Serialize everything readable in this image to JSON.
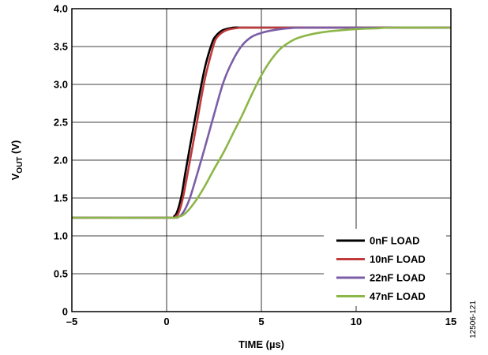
{
  "figure_id": "12506-121",
  "chart_data": {
    "type": "line",
    "xlabel": "TIME (µs)",
    "ylabel": {
      "main": "V",
      "sub": "OUT",
      "rest": " (V)"
    },
    "xlim": [
      -5,
      15
    ],
    "ylim": [
      0,
      4.0
    ],
    "xticks": [
      -5,
      0,
      5,
      10,
      15
    ],
    "xtick_labels": [
      "–5",
      "0",
      "5",
      "10",
      "15"
    ],
    "yticks": [
      0,
      0.5,
      1.0,
      1.5,
      2.0,
      2.5,
      3.0,
      3.5,
      4.0
    ],
    "ytick_labels": [
      "0",
      "0.5",
      "1.0",
      "1.5",
      "2.0",
      "2.5",
      "3.0",
      "3.5",
      "4.0"
    ],
    "grid": true,
    "legend_position": "bottom-right",
    "series": [
      {
        "name": "0nF LOAD",
        "color": "#000000",
        "x": [
          -5,
          0,
          0.4,
          0.6,
          0.8,
          1.0,
          1.5,
          2.0,
          2.4,
          2.6,
          2.8,
          3.0,
          3.5,
          4.0,
          5.0,
          15
        ],
        "y": [
          1.24,
          1.24,
          1.26,
          1.35,
          1.55,
          1.85,
          2.55,
          3.2,
          3.55,
          3.64,
          3.69,
          3.72,
          3.75,
          3.75,
          3.75,
          3.75
        ]
      },
      {
        "name": "10nF LOAD",
        "color": "#c0393b",
        "x": [
          -5,
          0,
          0.5,
          0.7,
          0.9,
          1.2,
          1.6,
          2.0,
          2.4,
          2.6,
          2.9,
          3.2,
          3.6,
          4.0,
          5.0,
          15
        ],
        "y": [
          1.24,
          1.24,
          1.26,
          1.35,
          1.55,
          1.95,
          2.5,
          3.05,
          3.45,
          3.6,
          3.68,
          3.72,
          3.74,
          3.75,
          3.75,
          3.75
        ]
      },
      {
        "name": "22nF LOAD",
        "color": "#7b5ea7",
        "x": [
          -5,
          0,
          0.6,
          0.9,
          1.2,
          1.5,
          2.0,
          2.5,
          3.0,
          3.5,
          4.0,
          4.5,
          5.0,
          5.5,
          6.0,
          7.0,
          8.0,
          15
        ],
        "y": [
          1.24,
          1.24,
          1.25,
          1.32,
          1.48,
          1.72,
          2.15,
          2.6,
          3.03,
          3.32,
          3.52,
          3.63,
          3.68,
          3.71,
          3.73,
          3.75,
          3.75,
          3.75
        ]
      },
      {
        "name": "47nF LOAD",
        "color": "#8db648",
        "x": [
          -5,
          0,
          0.6,
          1.0,
          1.5,
          2.0,
          2.5,
          3.0,
          3.5,
          4.0,
          4.5,
          5.0,
          5.5,
          6.0,
          6.5,
          7.0,
          8.0,
          9.0,
          10.0,
          11.0,
          12.0,
          15
        ],
        "y": [
          1.24,
          1.24,
          1.25,
          1.3,
          1.45,
          1.65,
          1.88,
          2.1,
          2.35,
          2.6,
          2.87,
          3.12,
          3.32,
          3.47,
          3.56,
          3.62,
          3.68,
          3.71,
          3.73,
          3.74,
          3.75,
          3.75
        ]
      }
    ]
  }
}
